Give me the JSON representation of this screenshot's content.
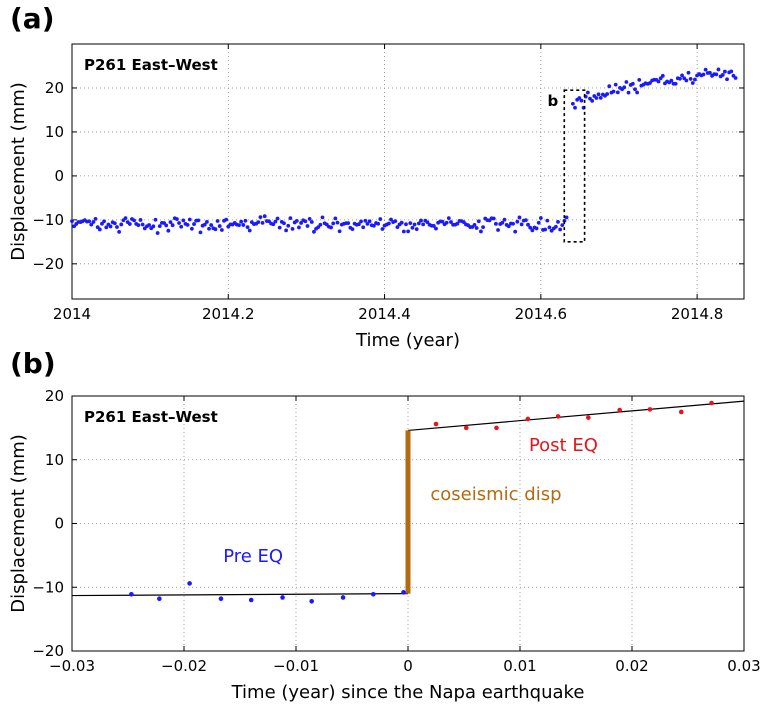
{
  "panels": {
    "a_label": "(a)",
    "b_label": "(b)"
  },
  "chart_data": [
    {
      "type": "scatter",
      "panel": "(a)",
      "station_label": "P261 East–West",
      "xlabel": "Time (year)",
      "ylabel": "Displacement (mm)",
      "xlim": [
        2014.0,
        2014.86
      ],
      "ylim": [
        -28,
        30
      ],
      "xticks": [
        2014,
        2014.2,
        2014.4,
        2014.6,
        2014.8
      ],
      "xtick_labels": [
        "2014",
        "2014.2",
        "2014.4",
        "2014.6",
        "2014.8"
      ],
      "yticks": [
        -20,
        -10,
        0,
        10,
        20
      ],
      "ytick_labels": [
        "−20",
        "−10",
        "0",
        "10",
        "20"
      ],
      "grid": true,
      "marker_color": "#1a1aff",
      "pre_event": {
        "x_start": 2014.0,
        "x_end": 2014.635,
        "mean": -11.0,
        "noise": 1.3,
        "step": 0.00274
      },
      "post_event": {
        "x_start": 2014.641,
        "x_end": 2014.85,
        "y_start": 16.5,
        "y_end": 23.0,
        "noise": 1.0,
        "step": 0.00274
      },
      "inset_box": {
        "label": "b",
        "x0": 2014.63,
        "x1": 2014.656,
        "y0": -15,
        "y1": 19.5
      }
    },
    {
      "type": "scatter",
      "panel": "(b)",
      "station_label": "P261 East–West",
      "xlabel": "Time (year) since the Napa earthquake",
      "ylabel": "Displacement (mm)",
      "xlim": [
        -0.03,
        0.03
      ],
      "ylim": [
        -20,
        20
      ],
      "xticks": [
        -0.03,
        -0.02,
        -0.01,
        0,
        0.01,
        0.02,
        0.03
      ],
      "xtick_labels": [
        "−0.03",
        "−0.02",
        "−0.01",
        "0",
        "0.01",
        "0.02",
        "0.03"
      ],
      "yticks": [
        -20,
        -10,
        0,
        10,
        20
      ],
      "ytick_labels": [
        "−20",
        "−10",
        "0",
        "10",
        "20"
      ],
      "grid": true,
      "series": [
        {
          "name": "Pre EQ",
          "color": "#1a1aff",
          "x": [
            -0.0247,
            -0.0222,
            -0.0195,
            -0.0167,
            -0.014,
            -0.0112,
            -0.0086,
            -0.0058,
            -0.0031,
            -0.0004
          ],
          "y": [
            -11.1,
            -11.8,
            -9.4,
            -11.8,
            -12.0,
            -11.6,
            -12.2,
            -11.6,
            -11.1,
            -10.8
          ]
        },
        {
          "name": "Post EQ",
          "color": "#e8141a",
          "x": [
            0.0025,
            0.0052,
            0.0079,
            0.0107,
            0.0134,
            0.0161,
            0.0189,
            0.0216,
            0.0244,
            0.0271
          ],
          "y": [
            15.6,
            15.0,
            15.0,
            16.4,
            16.8,
            16.6,
            17.8,
            17.9,
            17.5,
            18.9
          ]
        }
      ],
      "fit_lines": [
        {
          "x": [
            -0.03,
            0.0
          ],
          "y": [
            -11.3,
            -11.0
          ]
        },
        {
          "x": [
            0.0,
            0.03
          ],
          "y": [
            14.6,
            19.2
          ]
        }
      ],
      "coseismic": {
        "label": "coseismic disp",
        "x": 0.0,
        "y_from": -11.0,
        "y_to": 14.6,
        "color": "#b36b12"
      },
      "annotations": {
        "pre": {
          "text": "Pre EQ",
          "color": "#1a1aff"
        },
        "post": {
          "text": "Post EQ",
          "color": "#e8141a"
        }
      }
    }
  ]
}
